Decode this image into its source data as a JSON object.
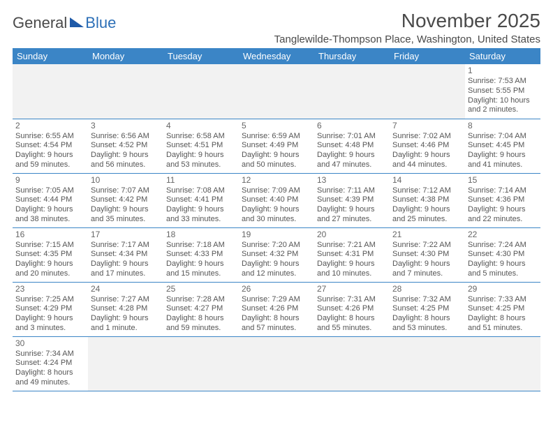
{
  "header": {
    "logo_text_a": "General",
    "logo_text_b": "Blue",
    "month_title": "November 2025",
    "location": "Tanglewilde-Thompson Place, Washington, United States"
  },
  "table": {
    "day_headers": [
      "Sunday",
      "Monday",
      "Tuesday",
      "Wednesday",
      "Thursday",
      "Friday",
      "Saturday"
    ],
    "header_bg": "#3b85c6",
    "header_fg": "#ffffff",
    "cell_border": "#3b85c6",
    "empty_bg": "#f2f2f2"
  },
  "days": {
    "d1": {
      "n": "1",
      "sr": "Sunrise: 7:53 AM",
      "ss": "Sunset: 5:55 PM",
      "dl1": "Daylight: 10 hours",
      "dl2": "and 2 minutes."
    },
    "d2": {
      "n": "2",
      "sr": "Sunrise: 6:55 AM",
      "ss": "Sunset: 4:54 PM",
      "dl1": "Daylight: 9 hours",
      "dl2": "and 59 minutes."
    },
    "d3": {
      "n": "3",
      "sr": "Sunrise: 6:56 AM",
      "ss": "Sunset: 4:52 PM",
      "dl1": "Daylight: 9 hours",
      "dl2": "and 56 minutes."
    },
    "d4": {
      "n": "4",
      "sr": "Sunrise: 6:58 AM",
      "ss": "Sunset: 4:51 PM",
      "dl1": "Daylight: 9 hours",
      "dl2": "and 53 minutes."
    },
    "d5": {
      "n": "5",
      "sr": "Sunrise: 6:59 AM",
      "ss": "Sunset: 4:49 PM",
      "dl1": "Daylight: 9 hours",
      "dl2": "and 50 minutes."
    },
    "d6": {
      "n": "6",
      "sr": "Sunrise: 7:01 AM",
      "ss": "Sunset: 4:48 PM",
      "dl1": "Daylight: 9 hours",
      "dl2": "and 47 minutes."
    },
    "d7": {
      "n": "7",
      "sr": "Sunrise: 7:02 AM",
      "ss": "Sunset: 4:46 PM",
      "dl1": "Daylight: 9 hours",
      "dl2": "and 44 minutes."
    },
    "d8": {
      "n": "8",
      "sr": "Sunrise: 7:04 AM",
      "ss": "Sunset: 4:45 PM",
      "dl1": "Daylight: 9 hours",
      "dl2": "and 41 minutes."
    },
    "d9": {
      "n": "9",
      "sr": "Sunrise: 7:05 AM",
      "ss": "Sunset: 4:44 PM",
      "dl1": "Daylight: 9 hours",
      "dl2": "and 38 minutes."
    },
    "d10": {
      "n": "10",
      "sr": "Sunrise: 7:07 AM",
      "ss": "Sunset: 4:42 PM",
      "dl1": "Daylight: 9 hours",
      "dl2": "and 35 minutes."
    },
    "d11": {
      "n": "11",
      "sr": "Sunrise: 7:08 AM",
      "ss": "Sunset: 4:41 PM",
      "dl1": "Daylight: 9 hours",
      "dl2": "and 33 minutes."
    },
    "d12": {
      "n": "12",
      "sr": "Sunrise: 7:09 AM",
      "ss": "Sunset: 4:40 PM",
      "dl1": "Daylight: 9 hours",
      "dl2": "and 30 minutes."
    },
    "d13": {
      "n": "13",
      "sr": "Sunrise: 7:11 AM",
      "ss": "Sunset: 4:39 PM",
      "dl1": "Daylight: 9 hours",
      "dl2": "and 27 minutes."
    },
    "d14": {
      "n": "14",
      "sr": "Sunrise: 7:12 AM",
      "ss": "Sunset: 4:38 PM",
      "dl1": "Daylight: 9 hours",
      "dl2": "and 25 minutes."
    },
    "d15": {
      "n": "15",
      "sr": "Sunrise: 7:14 AM",
      "ss": "Sunset: 4:36 PM",
      "dl1": "Daylight: 9 hours",
      "dl2": "and 22 minutes."
    },
    "d16": {
      "n": "16",
      "sr": "Sunrise: 7:15 AM",
      "ss": "Sunset: 4:35 PM",
      "dl1": "Daylight: 9 hours",
      "dl2": "and 20 minutes."
    },
    "d17": {
      "n": "17",
      "sr": "Sunrise: 7:17 AM",
      "ss": "Sunset: 4:34 PM",
      "dl1": "Daylight: 9 hours",
      "dl2": "and 17 minutes."
    },
    "d18": {
      "n": "18",
      "sr": "Sunrise: 7:18 AM",
      "ss": "Sunset: 4:33 PM",
      "dl1": "Daylight: 9 hours",
      "dl2": "and 15 minutes."
    },
    "d19": {
      "n": "19",
      "sr": "Sunrise: 7:20 AM",
      "ss": "Sunset: 4:32 PM",
      "dl1": "Daylight: 9 hours",
      "dl2": "and 12 minutes."
    },
    "d20": {
      "n": "20",
      "sr": "Sunrise: 7:21 AM",
      "ss": "Sunset: 4:31 PM",
      "dl1": "Daylight: 9 hours",
      "dl2": "and 10 minutes."
    },
    "d21": {
      "n": "21",
      "sr": "Sunrise: 7:22 AM",
      "ss": "Sunset: 4:30 PM",
      "dl1": "Daylight: 9 hours",
      "dl2": "and 7 minutes."
    },
    "d22": {
      "n": "22",
      "sr": "Sunrise: 7:24 AM",
      "ss": "Sunset: 4:30 PM",
      "dl1": "Daylight: 9 hours",
      "dl2": "and 5 minutes."
    },
    "d23": {
      "n": "23",
      "sr": "Sunrise: 7:25 AM",
      "ss": "Sunset: 4:29 PM",
      "dl1": "Daylight: 9 hours",
      "dl2": "and 3 minutes."
    },
    "d24": {
      "n": "24",
      "sr": "Sunrise: 7:27 AM",
      "ss": "Sunset: 4:28 PM",
      "dl1": "Daylight: 9 hours",
      "dl2": "and 1 minute."
    },
    "d25": {
      "n": "25",
      "sr": "Sunrise: 7:28 AM",
      "ss": "Sunset: 4:27 PM",
      "dl1": "Daylight: 8 hours",
      "dl2": "and 59 minutes."
    },
    "d26": {
      "n": "26",
      "sr": "Sunrise: 7:29 AM",
      "ss": "Sunset: 4:26 PM",
      "dl1": "Daylight: 8 hours",
      "dl2": "and 57 minutes."
    },
    "d27": {
      "n": "27",
      "sr": "Sunrise: 7:31 AM",
      "ss": "Sunset: 4:26 PM",
      "dl1": "Daylight: 8 hours",
      "dl2": "and 55 minutes."
    },
    "d28": {
      "n": "28",
      "sr": "Sunrise: 7:32 AM",
      "ss": "Sunset: 4:25 PM",
      "dl1": "Daylight: 8 hours",
      "dl2": "and 53 minutes."
    },
    "d29": {
      "n": "29",
      "sr": "Sunrise: 7:33 AM",
      "ss": "Sunset: 4:25 PM",
      "dl1": "Daylight: 8 hours",
      "dl2": "and 51 minutes."
    },
    "d30": {
      "n": "30",
      "sr": "Sunrise: 7:34 AM",
      "ss": "Sunset: 4:24 PM",
      "dl1": "Daylight: 8 hours",
      "dl2": "and 49 minutes."
    }
  },
  "layout": {
    "first_day_col": 6,
    "num_days": 30
  }
}
